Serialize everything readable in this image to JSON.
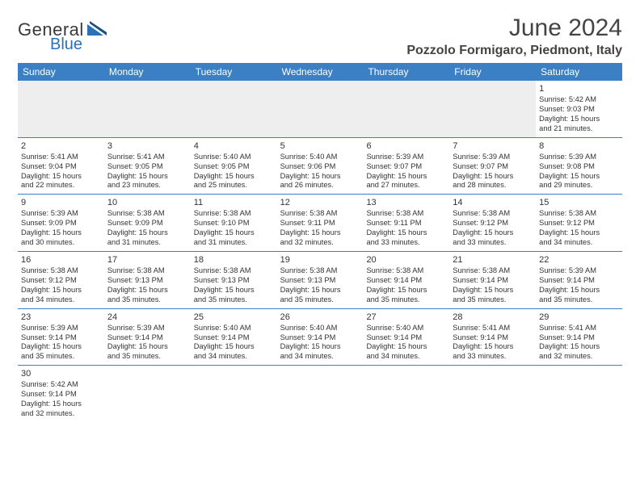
{
  "brand": {
    "part1": "General",
    "part2": "Blue"
  },
  "title": "June 2024",
  "location": "Pozzolo Formigaro, Piedmont, Italy",
  "colors": {
    "header_bg": "#3b7fc4",
    "header_text": "#ffffff",
    "row_divider": "#3b7fc4",
    "lead_empty_bg": "#eeeeee",
    "logo_blue": "#2a71b8",
    "text": "#333333"
  },
  "day_names": [
    "Sunday",
    "Monday",
    "Tuesday",
    "Wednesday",
    "Thursday",
    "Friday",
    "Saturday"
  ],
  "weeks": [
    [
      {
        "blank": true
      },
      {
        "blank": true
      },
      {
        "blank": true
      },
      {
        "blank": true
      },
      {
        "blank": true
      },
      {
        "blank": true
      },
      {
        "day": "1",
        "sunrise": "Sunrise: 5:42 AM",
        "sunset": "Sunset: 9:03 PM",
        "daylight1": "Daylight: 15 hours",
        "daylight2": "and 21 minutes."
      }
    ],
    [
      {
        "day": "2",
        "sunrise": "Sunrise: 5:41 AM",
        "sunset": "Sunset: 9:04 PM",
        "daylight1": "Daylight: 15 hours",
        "daylight2": "and 22 minutes."
      },
      {
        "day": "3",
        "sunrise": "Sunrise: 5:41 AM",
        "sunset": "Sunset: 9:05 PM",
        "daylight1": "Daylight: 15 hours",
        "daylight2": "and 23 minutes."
      },
      {
        "day": "4",
        "sunrise": "Sunrise: 5:40 AM",
        "sunset": "Sunset: 9:05 PM",
        "daylight1": "Daylight: 15 hours",
        "daylight2": "and 25 minutes."
      },
      {
        "day": "5",
        "sunrise": "Sunrise: 5:40 AM",
        "sunset": "Sunset: 9:06 PM",
        "daylight1": "Daylight: 15 hours",
        "daylight2": "and 26 minutes."
      },
      {
        "day": "6",
        "sunrise": "Sunrise: 5:39 AM",
        "sunset": "Sunset: 9:07 PM",
        "daylight1": "Daylight: 15 hours",
        "daylight2": "and 27 minutes."
      },
      {
        "day": "7",
        "sunrise": "Sunrise: 5:39 AM",
        "sunset": "Sunset: 9:07 PM",
        "daylight1": "Daylight: 15 hours",
        "daylight2": "and 28 minutes."
      },
      {
        "day": "8",
        "sunrise": "Sunrise: 5:39 AM",
        "sunset": "Sunset: 9:08 PM",
        "daylight1": "Daylight: 15 hours",
        "daylight2": "and 29 minutes."
      }
    ],
    [
      {
        "day": "9",
        "sunrise": "Sunrise: 5:39 AM",
        "sunset": "Sunset: 9:09 PM",
        "daylight1": "Daylight: 15 hours",
        "daylight2": "and 30 minutes."
      },
      {
        "day": "10",
        "sunrise": "Sunrise: 5:38 AM",
        "sunset": "Sunset: 9:09 PM",
        "daylight1": "Daylight: 15 hours",
        "daylight2": "and 31 minutes."
      },
      {
        "day": "11",
        "sunrise": "Sunrise: 5:38 AM",
        "sunset": "Sunset: 9:10 PM",
        "daylight1": "Daylight: 15 hours",
        "daylight2": "and 31 minutes."
      },
      {
        "day": "12",
        "sunrise": "Sunrise: 5:38 AM",
        "sunset": "Sunset: 9:11 PM",
        "daylight1": "Daylight: 15 hours",
        "daylight2": "and 32 minutes."
      },
      {
        "day": "13",
        "sunrise": "Sunrise: 5:38 AM",
        "sunset": "Sunset: 9:11 PM",
        "daylight1": "Daylight: 15 hours",
        "daylight2": "and 33 minutes."
      },
      {
        "day": "14",
        "sunrise": "Sunrise: 5:38 AM",
        "sunset": "Sunset: 9:12 PM",
        "daylight1": "Daylight: 15 hours",
        "daylight2": "and 33 minutes."
      },
      {
        "day": "15",
        "sunrise": "Sunrise: 5:38 AM",
        "sunset": "Sunset: 9:12 PM",
        "daylight1": "Daylight: 15 hours",
        "daylight2": "and 34 minutes."
      }
    ],
    [
      {
        "day": "16",
        "sunrise": "Sunrise: 5:38 AM",
        "sunset": "Sunset: 9:12 PM",
        "daylight1": "Daylight: 15 hours",
        "daylight2": "and 34 minutes."
      },
      {
        "day": "17",
        "sunrise": "Sunrise: 5:38 AM",
        "sunset": "Sunset: 9:13 PM",
        "daylight1": "Daylight: 15 hours",
        "daylight2": "and 35 minutes."
      },
      {
        "day": "18",
        "sunrise": "Sunrise: 5:38 AM",
        "sunset": "Sunset: 9:13 PM",
        "daylight1": "Daylight: 15 hours",
        "daylight2": "and 35 minutes."
      },
      {
        "day": "19",
        "sunrise": "Sunrise: 5:38 AM",
        "sunset": "Sunset: 9:13 PM",
        "daylight1": "Daylight: 15 hours",
        "daylight2": "and 35 minutes."
      },
      {
        "day": "20",
        "sunrise": "Sunrise: 5:38 AM",
        "sunset": "Sunset: 9:14 PM",
        "daylight1": "Daylight: 15 hours",
        "daylight2": "and 35 minutes."
      },
      {
        "day": "21",
        "sunrise": "Sunrise: 5:38 AM",
        "sunset": "Sunset: 9:14 PM",
        "daylight1": "Daylight: 15 hours",
        "daylight2": "and 35 minutes."
      },
      {
        "day": "22",
        "sunrise": "Sunrise: 5:39 AM",
        "sunset": "Sunset: 9:14 PM",
        "daylight1": "Daylight: 15 hours",
        "daylight2": "and 35 minutes."
      }
    ],
    [
      {
        "day": "23",
        "sunrise": "Sunrise: 5:39 AM",
        "sunset": "Sunset: 9:14 PM",
        "daylight1": "Daylight: 15 hours",
        "daylight2": "and 35 minutes."
      },
      {
        "day": "24",
        "sunrise": "Sunrise: 5:39 AM",
        "sunset": "Sunset: 9:14 PM",
        "daylight1": "Daylight: 15 hours",
        "daylight2": "and 35 minutes."
      },
      {
        "day": "25",
        "sunrise": "Sunrise: 5:40 AM",
        "sunset": "Sunset: 9:14 PM",
        "daylight1": "Daylight: 15 hours",
        "daylight2": "and 34 minutes."
      },
      {
        "day": "26",
        "sunrise": "Sunrise: 5:40 AM",
        "sunset": "Sunset: 9:14 PM",
        "daylight1": "Daylight: 15 hours",
        "daylight2": "and 34 minutes."
      },
      {
        "day": "27",
        "sunrise": "Sunrise: 5:40 AM",
        "sunset": "Sunset: 9:14 PM",
        "daylight1": "Daylight: 15 hours",
        "daylight2": "and 34 minutes."
      },
      {
        "day": "28",
        "sunrise": "Sunrise: 5:41 AM",
        "sunset": "Sunset: 9:14 PM",
        "daylight1": "Daylight: 15 hours",
        "daylight2": "and 33 minutes."
      },
      {
        "day": "29",
        "sunrise": "Sunrise: 5:41 AM",
        "sunset": "Sunset: 9:14 PM",
        "daylight1": "Daylight: 15 hours",
        "daylight2": "and 32 minutes."
      }
    ],
    [
      {
        "day": "30",
        "sunrise": "Sunrise: 5:42 AM",
        "sunset": "Sunset: 9:14 PM",
        "daylight1": "Daylight: 15 hours",
        "daylight2": "and 32 minutes."
      },
      {
        "blank": true,
        "trailing": true
      },
      {
        "blank": true,
        "trailing": true
      },
      {
        "blank": true,
        "trailing": true
      },
      {
        "blank": true,
        "trailing": true
      },
      {
        "blank": true,
        "trailing": true
      },
      {
        "blank": true,
        "trailing": true
      }
    ]
  ]
}
